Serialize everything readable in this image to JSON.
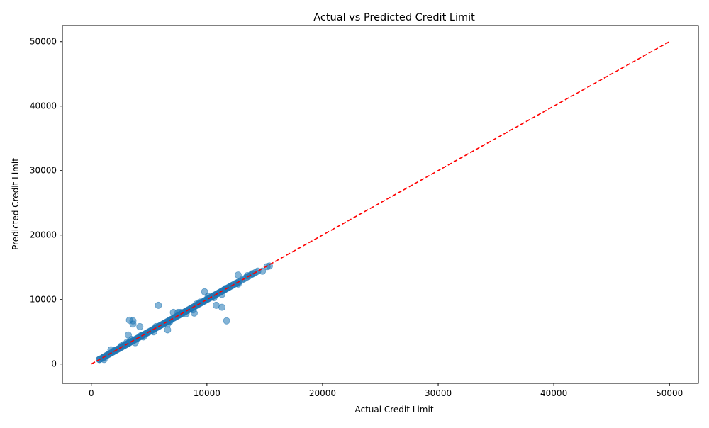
{
  "chart_data": {
    "type": "scatter",
    "title": "Actual vs Predicted Credit Limit",
    "xlabel": "Actual Credit Limit",
    "ylabel": "Predicted Credit Limit",
    "xlim": [
      -2500,
      52500
    ],
    "ylim": [
      -3000,
      52500
    ],
    "xticks": [
      0,
      10000,
      20000,
      30000,
      40000,
      50000
    ],
    "yticks": [
      0,
      10000,
      20000,
      30000,
      40000,
      50000
    ],
    "grid": false,
    "legend": "none",
    "point_color": "#1f77b4",
    "reference_line": {
      "x": [
        0,
        50000
      ],
      "y": [
        0,
        50000
      ],
      "color": "#ff0000",
      "style": "dashed"
    },
    "series": [
      {
        "x": [
          700,
          800,
          1000,
          1100,
          1200,
          1300,
          1400,
          1500,
          1600,
          1700,
          1800,
          1900,
          2000,
          2100,
          2200,
          2300,
          2400,
          2500,
          2600,
          2700,
          2800,
          2900,
          3000,
          3100,
          3200,
          3300,
          3400,
          3500,
          3600,
          3700,
          3800,
          3900,
          4000,
          4100,
          4200,
          4300,
          4400,
          4500,
          4600,
          4700,
          4800,
          4900,
          5000,
          5100,
          5200,
          5300,
          5400,
          5500,
          5600,
          5700,
          5800,
          5900,
          6000,
          6100,
          6200,
          6300,
          6400,
          6500,
          6600,
          6700,
          6800,
          6900,
          7000,
          7100,
          7200,
          7300,
          7400,
          7500,
          7600,
          7700,
          7800,
          7900,
          8000,
          8100,
          8200,
          8300,
          8400,
          8500,
          8600,
          8700,
          8800,
          8900,
          9000,
          9100,
          9200,
          9300,
          9400,
          9500,
          9600,
          9700,
          9800,
          9900,
          10000,
          10100,
          10200,
          10300,
          10400,
          10500,
          10600,
          10700,
          10800,
          10900,
          11000,
          11100,
          11200,
          11300,
          11400,
          11500,
          11600,
          11700,
          11800,
          11900,
          12000,
          12100,
          12200,
          12300,
          12500,
          12700,
          12800,
          13000,
          13200,
          13400,
          13600,
          13800,
          14000,
          14200,
          14400,
          14800,
          15200,
          15400,
          1700,
          2600,
          3100,
          3800,
          4300,
          5400,
          6600,
          7700,
          8200,
          9100,
          10100,
          11300,
          12700,
          13500,
          1000,
          2000,
          2800,
          3500,
          4500,
          5600,
          6800,
          7500,
          8800,
          9400,
          10600,
          11600,
          12600,
          13900,
          700,
          1100,
          3200,
          3300,
          3600,
          4200,
          5800,
          6600,
          7100,
          8900,
          9800,
          10800,
          11300,
          11700,
          12700,
          3300,
          3600
        ],
        "y": [
          700,
          800,
          1000,
          1100,
          1200,
          1300,
          1400,
          1500,
          1600,
          1700,
          1800,
          1900,
          2000,
          2100,
          2200,
          2300,
          2400,
          2500,
          2600,
          2700,
          2800,
          2900,
          3000,
          3100,
          3200,
          3300,
          3400,
          3500,
          3600,
          3700,
          3800,
          3900,
          4000,
          4100,
          4200,
          4300,
          4400,
          4500,
          4600,
          4700,
          4800,
          4900,
          5000,
          5100,
          5200,
          5300,
          5400,
          5500,
          5600,
          5700,
          5800,
          5900,
          6000,
          6100,
          6200,
          6300,
          6400,
          6500,
          6600,
          6700,
          6800,
          6900,
          7000,
          7100,
          7200,
          7300,
          7400,
          7500,
          7600,
          7700,
          7800,
          7900,
          8000,
          8100,
          8200,
          8300,
          8400,
          8500,
          8600,
          8700,
          8800,
          8900,
          9000,
          9100,
          9200,
          9300,
          9400,
          9500,
          9600,
          9700,
          9800,
          9900,
          10000,
          10100,
          10200,
          10300,
          10400,
          10500,
          10600,
          10700,
          10800,
          10900,
          11000,
          11100,
          11200,
          11300,
          11400,
          11500,
          11600,
          11700,
          11800,
          11900,
          12000,
          12100,
          12200,
          12300,
          12500,
          12700,
          12800,
          13000,
          13200,
          13400,
          13600,
          13800,
          14000,
          14200,
          14400,
          14400,
          15100,
          15200,
          2200,
          2800,
          3400,
          3300,
          4400,
          5000,
          6200,
          8000,
          7800,
          9300,
          10500,
          10800,
          12400,
          13700,
          900,
          2100,
          3000,
          3800,
          4200,
          5800,
          6600,
          8000,
          8400,
          9600,
          10300,
          11700,
          12500,
          14000,
          700,
          700,
          4500,
          6800,
          6200,
          5800,
          9100,
          5300,
          8000,
          7900,
          11200,
          9100,
          8800,
          6700,
          13800,
          3400,
          6700
        ]
      }
    ]
  }
}
